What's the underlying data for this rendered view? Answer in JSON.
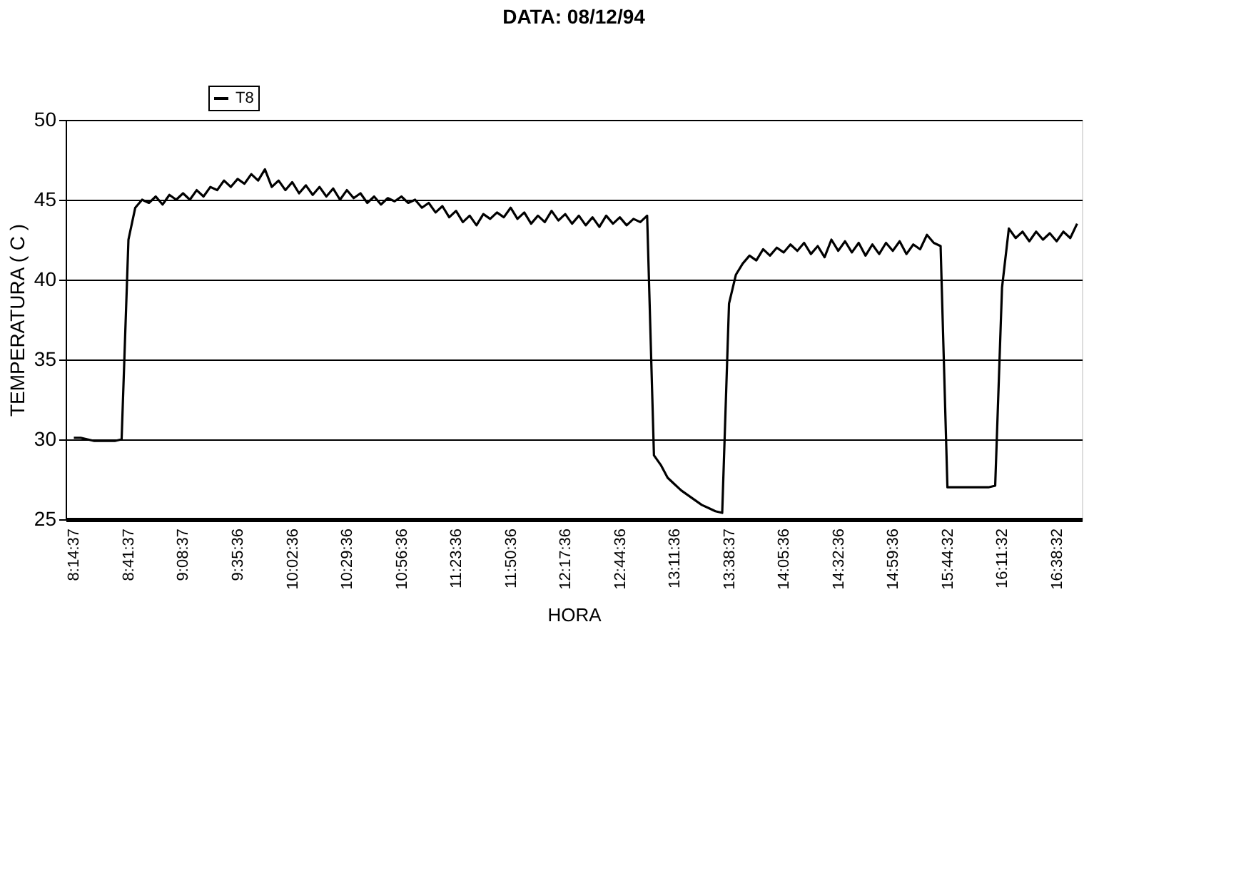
{
  "chart_data": {
    "type": "line",
    "title": "DATA: 08/12/94",
    "xlabel": "HORA",
    "ylabel": "TEMPERATURA ( C )",
    "categories": [
      "8:14:37",
      null,
      null,
      null,
      null,
      null,
      null,
      null,
      "8:41:37",
      null,
      null,
      null,
      null,
      null,
      null,
      null,
      "9:08:37",
      null,
      null,
      null,
      null,
      null,
      null,
      null,
      "9:35:36",
      null,
      null,
      null,
      null,
      null,
      null,
      null,
      "10:02:36",
      null,
      null,
      null,
      null,
      null,
      null,
      null,
      "10:29:36",
      null,
      null,
      null,
      null,
      null,
      null,
      null,
      "10:56:36",
      null,
      null,
      null,
      null,
      null,
      null,
      null,
      "11:23:36",
      null,
      null,
      null,
      null,
      null,
      null,
      null,
      "11:50:36",
      null,
      null,
      null,
      null,
      null,
      null,
      null,
      "12:17:36",
      null,
      null,
      null,
      null,
      null,
      null,
      null,
      "12:44:36",
      null,
      null,
      null,
      null,
      null,
      null,
      null,
      "13:11:36",
      null,
      null,
      null,
      null,
      null,
      null,
      null,
      "13:38:37",
      null,
      null,
      null,
      null,
      null,
      null,
      null,
      "14:05:36",
      null,
      null,
      null,
      null,
      null,
      null,
      null,
      "14:32:36",
      null,
      null,
      null,
      null,
      null,
      null,
      null,
      "14:59:36",
      null,
      null,
      null,
      null,
      null,
      null,
      null,
      "15:44:32",
      null,
      null,
      null,
      null,
      null,
      null,
      null,
      "16:11:32",
      null,
      null,
      null,
      null,
      null,
      null,
      null,
      "16:38:32",
      null,
      null,
      null
    ],
    "series": [
      {
        "name": "T8",
        "color": "#000000",
        "values": [
          30.1,
          30.1,
          30.0,
          29.9,
          29.9,
          29.9,
          29.9,
          30.0,
          42.5,
          44.5,
          45.0,
          44.8,
          45.2,
          44.7,
          45.3,
          45.0,
          45.4,
          45.0,
          45.6,
          45.2,
          45.8,
          45.6,
          46.2,
          45.8,
          46.3,
          46.0,
          46.6,
          46.2,
          46.9,
          45.8,
          46.2,
          45.6,
          46.1,
          45.4,
          45.9,
          45.3,
          45.8,
          45.2,
          45.7,
          45.0,
          45.6,
          45.1,
          45.4,
          44.8,
          45.2,
          44.7,
          45.1,
          44.9,
          45.2,
          44.8,
          45.0,
          44.5,
          44.8,
          44.2,
          44.6,
          43.9,
          44.3,
          43.6,
          44.0,
          43.4,
          44.1,
          43.8,
          44.2,
          43.9,
          44.5,
          43.8,
          44.2,
          43.5,
          44.0,
          43.6,
          44.3,
          43.7,
          44.1,
          43.5,
          44.0,
          43.4,
          43.9,
          43.3,
          44.0,
          43.5,
          43.9,
          43.4,
          43.8,
          43.6,
          44.0,
          29.0,
          28.4,
          27.6,
          27.2,
          26.8,
          26.5,
          26.2,
          25.9,
          25.7,
          25.5,
          25.4,
          38.5,
          40.3,
          41.0,
          41.5,
          41.2,
          41.9,
          41.5,
          42.0,
          41.7,
          42.2,
          41.8,
          42.3,
          41.6,
          42.1,
          41.4,
          42.5,
          41.8,
          42.4,
          41.7,
          42.3,
          41.5,
          42.2,
          41.6,
          42.3,
          41.8,
          42.4,
          41.6,
          42.2,
          41.9,
          42.8,
          42.3,
          42.1,
          27.0,
          27.0,
          27.0,
          27.0,
          27.0,
          27.0,
          27.0,
          27.1,
          39.5,
          43.2,
          42.6,
          43.0,
          42.4,
          43.0,
          42.5,
          42.9,
          42.4,
          43.0,
          42.6,
          43.5
        ]
      }
    ],
    "ylim": [
      25,
      50
    ],
    "yticks": [
      25,
      30,
      35,
      40,
      45,
      50
    ],
    "grid": "y",
    "legend": "top"
  }
}
